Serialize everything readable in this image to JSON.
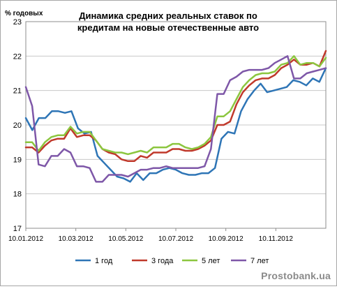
{
  "watermark": "Prostobank.ua",
  "chart_data": {
    "type": "line",
    "title": "Динамика средних реальных ставок по кредитам на новые отечественные авто",
    "ylabel": "% годовых",
    "xlabel": "",
    "ylim": [
      17,
      23
    ],
    "yticks": [
      "17",
      "18",
      "19",
      "20",
      "21",
      "22",
      "23"
    ],
    "xticks": [
      "10.01.2012",
      "10.03.2012",
      "10.05.2012",
      "10.07.2012",
      "10.09.2012",
      "10.11.2012"
    ],
    "grid": true,
    "legend_position": "bottom",
    "series": [
      {
        "name": "1 год",
        "color": "#2e75b6",
        "values": [
          20.2,
          19.85,
          20.2,
          20.2,
          20.4,
          20.4,
          20.35,
          20.4,
          19.9,
          19.75,
          19.8,
          19.1,
          18.9,
          18.7,
          18.5,
          18.45,
          18.35,
          18.6,
          18.4,
          18.6,
          18.6,
          18.7,
          18.75,
          18.7,
          18.6,
          18.55,
          18.55,
          18.6,
          18.6,
          18.75,
          19.6,
          19.8,
          19.75,
          20.4,
          20.75,
          21.0,
          21.2,
          20.95,
          21.0,
          21.05,
          21.1,
          21.3,
          21.25,
          21.15,
          21.35,
          21.25,
          21.65
        ]
      },
      {
        "name": "3 года",
        "color": "#c0392b",
        "values": [
          19.35,
          19.35,
          19.2,
          19.4,
          19.55,
          19.6,
          19.6,
          19.9,
          19.65,
          19.7,
          19.7,
          19.55,
          19.3,
          19.2,
          19.15,
          19.0,
          18.95,
          18.95,
          19.1,
          19.05,
          19.2,
          19.2,
          19.2,
          19.3,
          19.3,
          19.25,
          19.25,
          19.3,
          19.4,
          19.55,
          20.0,
          20.0,
          20.1,
          20.6,
          20.95,
          21.15,
          21.3,
          21.35,
          21.35,
          21.45,
          21.65,
          21.75,
          21.9,
          21.75,
          21.75,
          21.8,
          21.7,
          22.15
        ]
      },
      {
        "name": "5 лет",
        "color": "#8cc63f",
        "values": [
          19.5,
          19.5,
          19.25,
          19.5,
          19.65,
          19.7,
          19.7,
          19.95,
          19.75,
          19.8,
          19.8,
          19.55,
          19.3,
          19.25,
          19.2,
          19.2,
          19.15,
          19.2,
          19.25,
          19.2,
          19.35,
          19.35,
          19.35,
          19.45,
          19.45,
          19.35,
          19.3,
          19.35,
          19.45,
          19.65,
          20.25,
          20.25,
          20.4,
          20.75,
          21.1,
          21.3,
          21.45,
          21.5,
          21.5,
          21.55,
          21.75,
          21.8,
          22.0,
          21.75,
          21.8,
          21.8,
          21.7,
          21.95
        ]
      },
      {
        "name": "7 лет",
        "color": "#7e57a8",
        "values": [
          21.1,
          20.55,
          18.85,
          18.8,
          19.1,
          19.1,
          19.3,
          19.2,
          18.8,
          18.8,
          18.75,
          18.35,
          18.35,
          18.55,
          18.55,
          18.55,
          18.5,
          18.6,
          18.7,
          18.7,
          18.75,
          18.75,
          18.8,
          18.75,
          18.75,
          18.75,
          18.75,
          18.75,
          18.8,
          19.3,
          20.9,
          20.9,
          21.3,
          21.4,
          21.55,
          21.6,
          21.6,
          21.6,
          21.65,
          21.8,
          21.9,
          22.0,
          21.35,
          21.35,
          21.5,
          21.55,
          21.6,
          21.65
        ]
      }
    ]
  }
}
